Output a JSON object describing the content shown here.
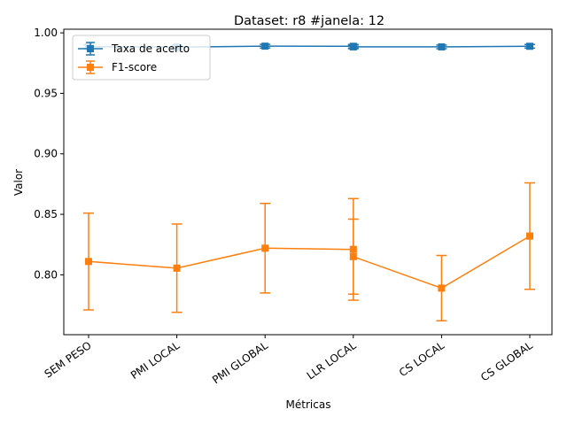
{
  "chart_data": {
    "type": "line",
    "title": "Dataset: r8 #janela: 12",
    "xlabel": "Métricas",
    "ylabel": "Valor",
    "categories": [
      "SEM PESO",
      "PMI LOCAL",
      "PMI GLOBAL",
      "LLR LOCAL",
      "CS LOCAL",
      "CS GLOBAL"
    ],
    "ylim": [
      0.7505,
      1.003
    ],
    "yticks": [
      0.8,
      0.85,
      0.9,
      0.95,
      1.0
    ],
    "ytick_labels": [
      "0.80",
      "0.85",
      "0.90",
      "0.95",
      "1.00"
    ],
    "grid": false,
    "legend_position": "upper-left",
    "series": [
      {
        "name": "Taxa de acerto",
        "color": "#1f77b4",
        "marker": "square",
        "points": [
          {
            "x": 0,
            "y": 0.9885,
            "err": 0.0015
          },
          {
            "x": 1,
            "y": 0.9882,
            "err": 0.0015
          },
          {
            "x": 2,
            "y": 0.989,
            "err": 0.0015
          },
          {
            "x": 3,
            "y": 0.9889,
            "err": 0.0015
          },
          {
            "x": 3,
            "y": 0.9884,
            "err": 0.0015
          },
          {
            "x": 4,
            "y": 0.9884,
            "err": 0.0015
          },
          {
            "x": 5,
            "y": 0.9889,
            "err": 0.0015
          }
        ]
      },
      {
        "name": "F1-score",
        "color": "#ff7f0e",
        "marker": "square",
        "points": [
          {
            "x": 0,
            "y": 0.811,
            "err": 0.04
          },
          {
            "x": 1,
            "y": 0.8055,
            "err": 0.0365
          },
          {
            "x": 2,
            "y": 0.822,
            "err": 0.037
          },
          {
            "x": 3,
            "y": 0.821,
            "err": 0.042
          },
          {
            "x": 3,
            "y": 0.815,
            "err": 0.031
          },
          {
            "x": 4,
            "y": 0.789,
            "err": 0.027
          },
          {
            "x": 5,
            "y": 0.832,
            "err": 0.044
          }
        ]
      }
    ]
  }
}
